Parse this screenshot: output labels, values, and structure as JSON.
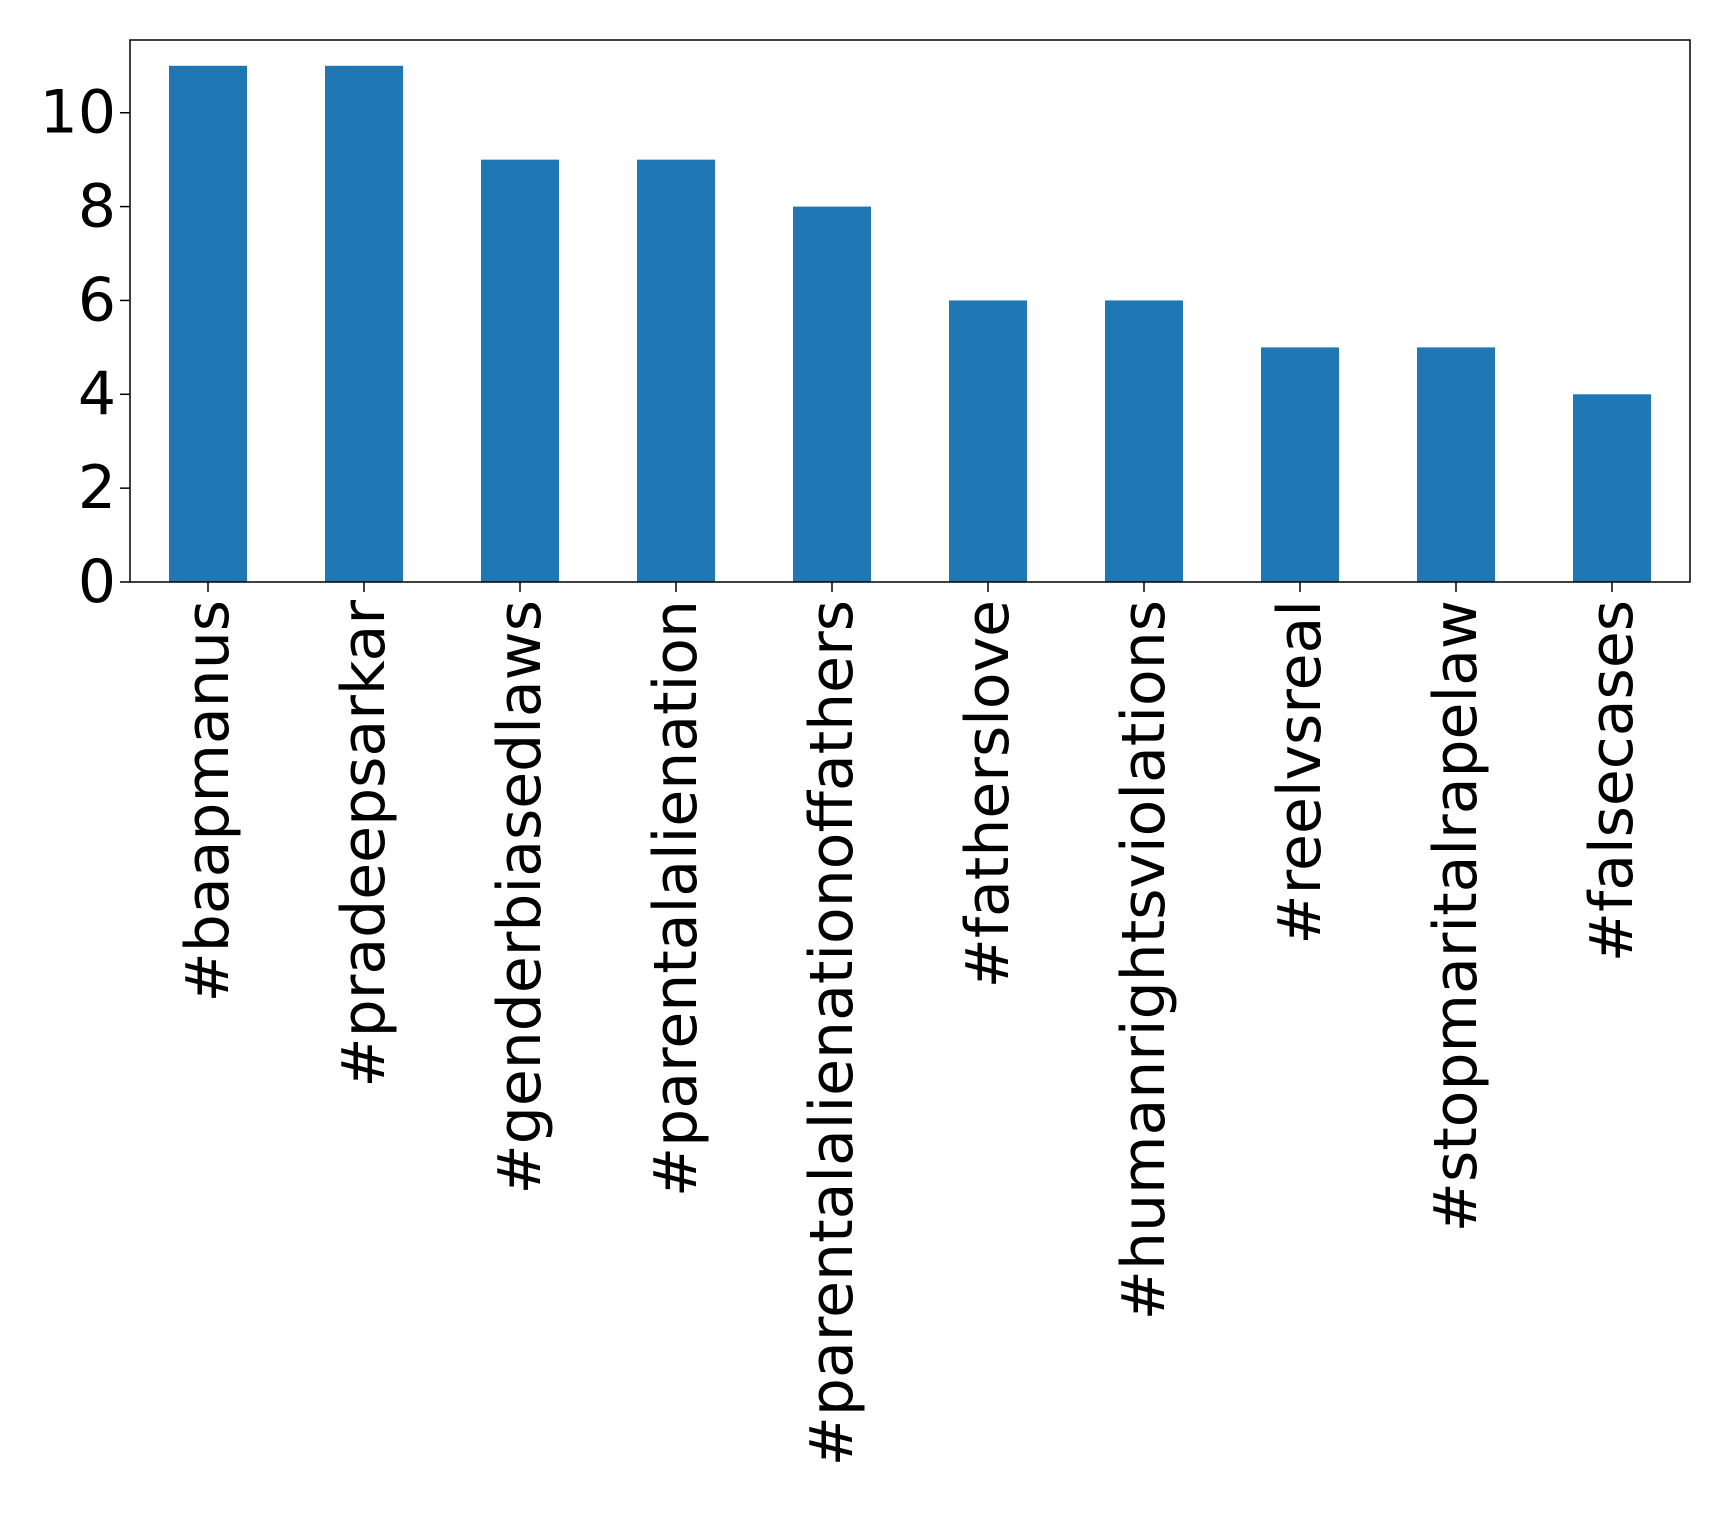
{
  "chart_data": {
    "type": "bar",
    "title": "",
    "xlabel": "",
    "ylabel": "",
    "categories": [
      "#baapmanus",
      "#pradeepsarkar",
      "#genderbiasedlaws",
      "#parentalalienation",
      "#parentalalienationoffathers",
      "#fatherslove",
      "#humanrightsviolations",
      "#reelvsreal",
      "#stopmaritalrapelaw",
      "#falsecases"
    ],
    "values": [
      11,
      11,
      9,
      9,
      8,
      6,
      6,
      5,
      5,
      4
    ],
    "ylim": [
      0,
      11.55
    ],
    "yticks": [
      "0",
      "2",
      "4",
      "6",
      "8",
      "10"
    ],
    "bar_color": "#1f77b4",
    "grid": false,
    "legend": "none"
  }
}
